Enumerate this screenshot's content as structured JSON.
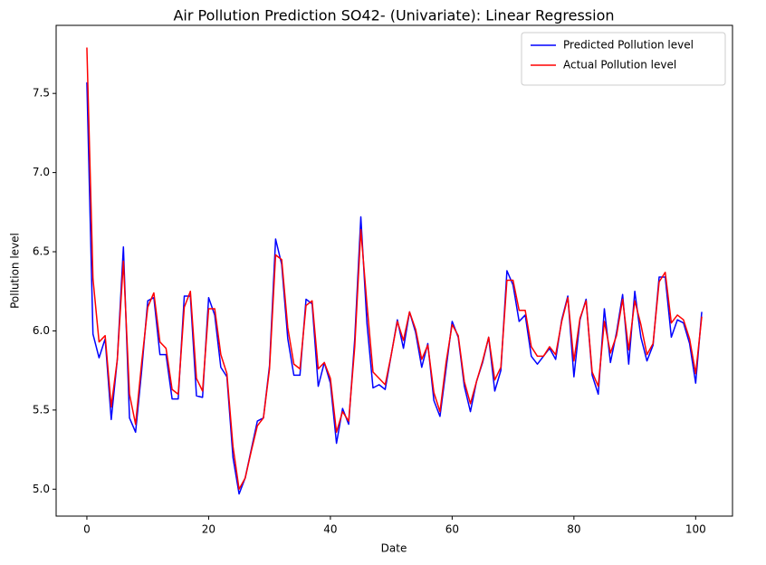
{
  "chart_data": {
    "type": "line",
    "title": "Air Pollution Prediction SO42- (Univariate): Linear Regression",
    "x_label": "Date",
    "y_label": "Pollution level",
    "x": [
      0,
      1,
      2,
      3,
      4,
      5,
      6,
      7,
      8,
      9,
      10,
      11,
      12,
      13,
      14,
      15,
      16,
      17,
      18,
      19,
      20,
      21,
      22,
      23,
      24,
      25,
      26,
      27,
      28,
      29,
      30,
      31,
      32,
      33,
      34,
      35,
      36,
      37,
      38,
      39,
      40,
      41,
      42,
      43,
      44,
      45,
      46,
      47,
      48,
      49,
      50,
      51,
      52,
      53,
      54,
      55,
      56,
      57,
      58,
      59,
      60,
      61,
      62,
      63,
      64,
      65,
      66,
      67,
      68,
      69,
      70,
      71,
      72,
      73,
      74,
      75,
      76,
      77,
      78,
      79,
      80,
      81,
      82,
      83,
      84,
      85,
      86,
      87,
      88,
      89,
      90,
      91,
      92,
      93,
      94,
      95,
      96,
      97,
      98,
      99,
      100,
      101
    ],
    "series": [
      {
        "name": "Predicted Pollution level",
        "color": "#0000ff",
        "values": [
          7.57,
          5.98,
          5.83,
          5.95,
          5.44,
          5.82,
          6.53,
          5.45,
          5.36,
          5.75,
          6.19,
          6.21,
          5.85,
          5.85,
          5.57,
          5.57,
          6.22,
          6.22,
          5.59,
          5.58,
          6.21,
          6.1,
          5.77,
          5.71,
          5.2,
          4.97,
          5.07,
          5.25,
          5.43,
          5.45,
          5.78,
          6.58,
          6.42,
          5.95,
          5.72,
          5.72,
          6.2,
          6.17,
          5.65,
          5.8,
          5.67,
          5.29,
          5.51,
          5.41,
          5.95,
          6.72,
          6.05,
          5.64,
          5.66,
          5.63,
          5.85,
          6.07,
          5.89,
          6.12,
          5.99,
          5.77,
          5.92,
          5.56,
          5.46,
          5.76,
          6.06,
          5.96,
          5.65,
          5.49,
          5.68,
          5.8,
          5.96,
          5.62,
          5.75,
          6.38,
          6.29,
          6.06,
          6.1,
          5.84,
          5.79,
          5.84,
          5.89,
          5.82,
          6.07,
          6.22,
          5.71,
          6.07,
          6.2,
          5.72,
          5.6,
          6.14,
          5.8,
          5.99,
          6.23,
          5.79,
          6.25,
          5.96,
          5.81,
          5.91,
          6.34,
          6.34,
          5.96,
          6.07,
          6.05,
          5.92,
          5.67,
          6.12
        ]
      },
      {
        "name": "Actual Pollution level",
        "color": "#ff0000",
        "values": [
          7.79,
          6.33,
          5.93,
          5.97,
          5.52,
          5.82,
          6.44,
          5.6,
          5.41,
          5.8,
          6.15,
          6.24,
          5.93,
          5.89,
          5.63,
          5.6,
          6.15,
          6.25,
          5.7,
          5.62,
          6.14,
          6.14,
          5.85,
          5.73,
          5.27,
          5.0,
          5.07,
          5.24,
          5.4,
          5.45,
          5.76,
          6.48,
          6.45,
          6.02,
          5.79,
          5.76,
          6.16,
          6.19,
          5.76,
          5.8,
          5.7,
          5.36,
          5.49,
          5.43,
          5.9,
          6.64,
          6.17,
          5.74,
          5.7,
          5.66,
          5.85,
          6.06,
          5.94,
          6.12,
          6.01,
          5.82,
          5.91,
          5.61,
          5.49,
          5.8,
          6.04,
          5.97,
          5.68,
          5.54,
          5.68,
          5.81,
          5.96,
          5.69,
          5.77,
          6.32,
          6.32,
          6.13,
          6.13,
          5.9,
          5.84,
          5.84,
          5.9,
          5.85,
          6.06,
          6.21,
          5.81,
          6.08,
          6.19,
          5.74,
          5.65,
          6.06,
          5.86,
          5.97,
          6.2,
          5.88,
          6.19,
          6.04,
          5.85,
          5.92,
          6.31,
          6.37,
          6.05,
          6.1,
          6.07,
          5.95,
          5.73,
          6.09
        ]
      }
    ],
    "xlim": [
      -5.05,
      106.05
    ],
    "ylim": [
      4.83,
      7.93
    ],
    "xticks": [
      0,
      20,
      40,
      60,
      80,
      100
    ],
    "yticks": [
      {
        "value": 5,
        "label": "5.0"
      },
      5.5,
      {
        "value": 6,
        "label": "6.0"
      },
      6.5,
      {
        "value": 7,
        "label": "7.0"
      },
      7.5
    ],
    "grid": false,
    "legend": "upper-right"
  }
}
